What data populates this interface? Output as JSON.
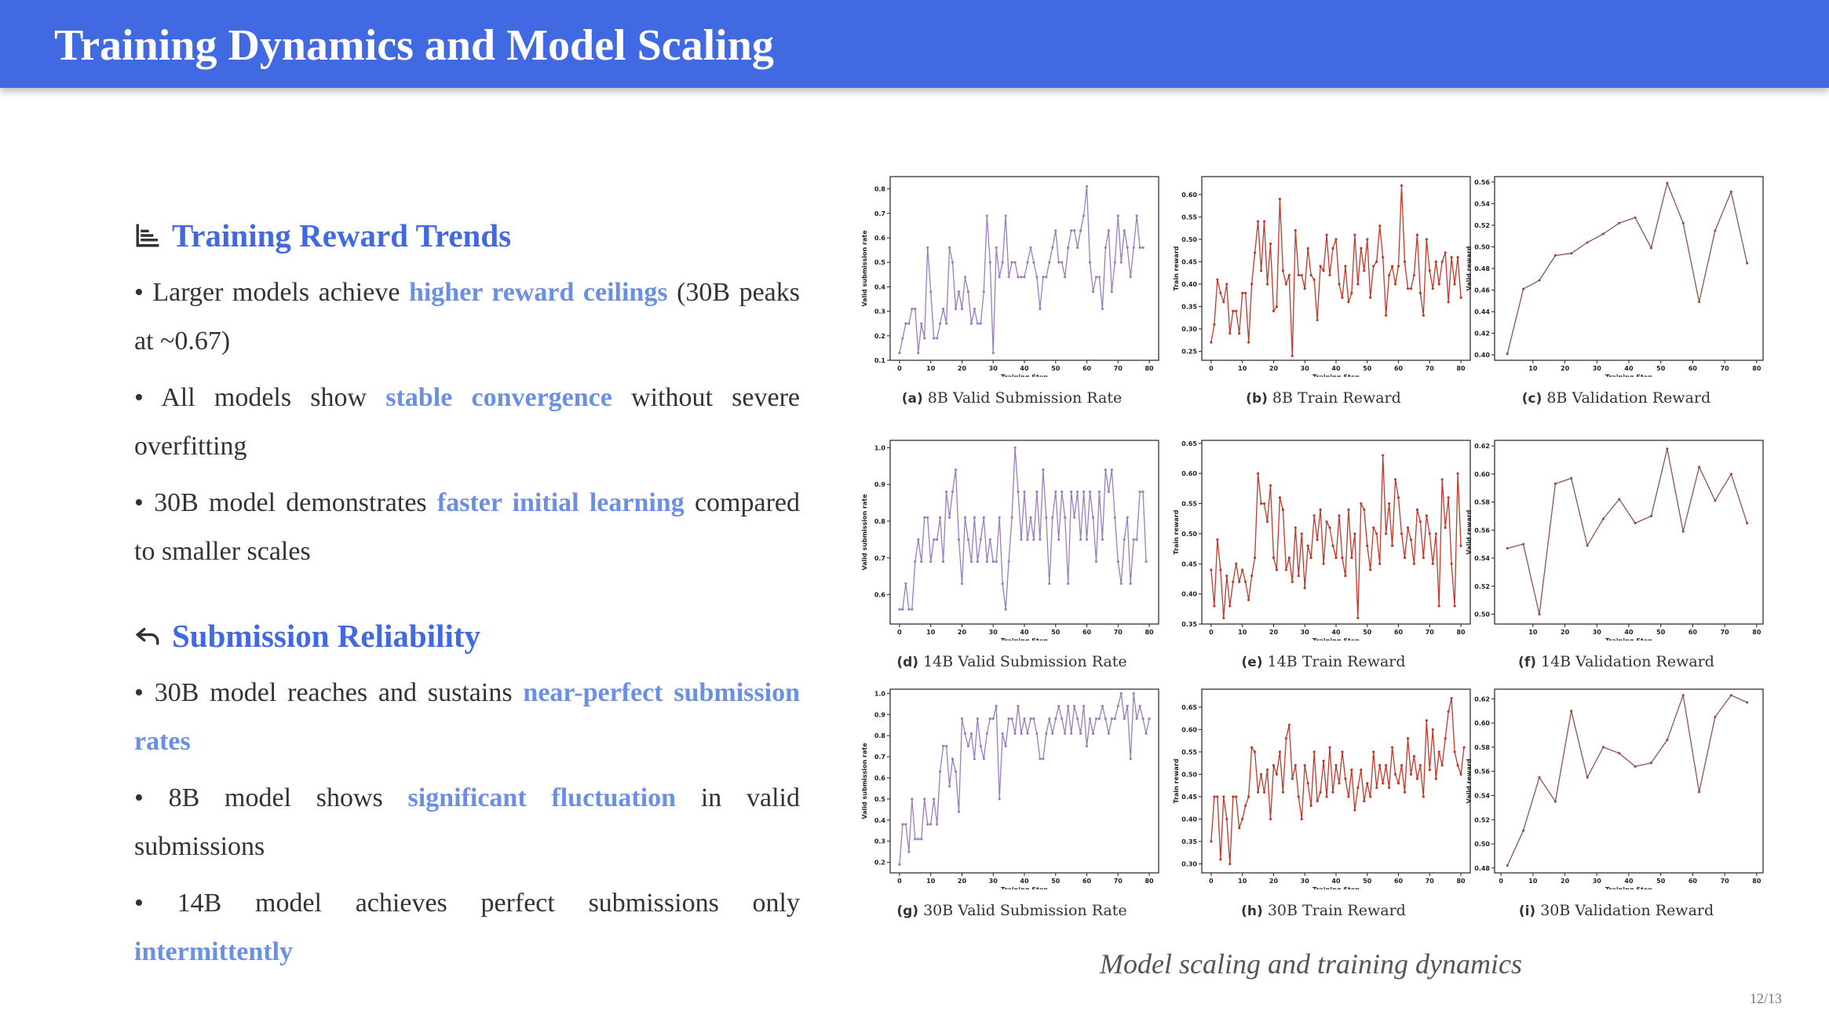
{
  "header": {
    "title": "Training Dynamics and Model Scaling"
  },
  "sections": [
    {
      "icon": "bar-chart-icon",
      "title": "Training Reward Trends",
      "bullets": [
        {
          "parts": [
            {
              "t": "• Larger models achieve "
            },
            {
              "t": "higher reward ceilings",
              "hl": true
            },
            {
              "t": " (30B peaks at ~0.67)"
            }
          ]
        },
        {
          "parts": [
            {
              "t": "• All models show "
            },
            {
              "t": "stable convergence",
              "hl": true
            },
            {
              "t": " without severe overfitting"
            }
          ]
        },
        {
          "parts": [
            {
              "t": "• 30B model demonstrates "
            },
            {
              "t": "faster initial learning",
              "hl": true
            },
            {
              "t": " compared to smaller scales"
            }
          ]
        }
      ]
    },
    {
      "icon": "reply-arrow-icon",
      "title": "Submission Reliability",
      "bullets": [
        {
          "parts": [
            {
              "t": "• 30B model reaches and sustains "
            },
            {
              "t": "near-perfect submission rates",
              "hl": true
            }
          ]
        },
        {
          "parts": [
            {
              "t": "• 8B model shows "
            },
            {
              "t": "significant fluctuation",
              "hl": true
            },
            {
              "t": " in valid submissions"
            }
          ]
        },
        {
          "parts": [
            {
              "t": "• 14B model achieves perfect submissions only "
            },
            {
              "t": "intermittently",
              "hl": true
            }
          ]
        }
      ]
    }
  ],
  "figure_caption": "Model scaling and training dynamics",
  "page_number": "12/13",
  "colors": {
    "header": "#4169e1",
    "highlight": "#6b8fe3",
    "purple_series": "#9b7ebd",
    "red_series": "#c0392b",
    "brown_series": "#8c564b"
  },
  "chart_data": [
    {
      "type": "line",
      "id": "a",
      "letter": "(a)",
      "title": "8B Valid Submission Rate",
      "xlabel": "Training Step",
      "ylabel": "Valid submission rate",
      "color": "#9b7ebd",
      "xlim": [
        -3,
        83
      ],
      "ylim": [
        0.1,
        0.85
      ],
      "xticks": [
        0,
        10,
        20,
        30,
        40,
        50,
        60,
        70,
        80
      ],
      "yticks": [
        0.1,
        0.2,
        0.3,
        0.4,
        0.5,
        0.6,
        0.7,
        0.8
      ],
      "x_start": 0,
      "x_step": 1,
      "values": [
        0.13,
        0.19,
        0.25,
        0.25,
        0.31,
        0.31,
        0.13,
        0.25,
        0.19,
        0.56,
        0.38,
        0.19,
        0.19,
        0.25,
        0.31,
        0.25,
        0.56,
        0.5,
        0.31,
        0.38,
        0.31,
        0.44,
        0.38,
        0.25,
        0.31,
        0.25,
        0.25,
        0.38,
        0.69,
        0.5,
        0.13,
        0.56,
        0.44,
        0.5,
        0.69,
        0.44,
        0.5,
        0.5,
        0.44,
        0.44,
        0.44,
        0.5,
        0.56,
        0.5,
        0.44,
        0.31,
        0.44,
        0.44,
        0.5,
        0.56,
        0.63,
        0.5,
        0.5,
        0.44,
        0.56,
        0.63,
        0.63,
        0.56,
        0.63,
        0.69,
        0.81,
        0.5,
        0.38,
        0.44,
        0.44,
        0.31,
        0.56,
        0.63,
        0.38,
        0.5,
        0.69,
        0.5,
        0.63,
        0.56,
        0.44,
        0.56,
        0.69,
        0.56,
        0.56
      ]
    },
    {
      "type": "line",
      "id": "b",
      "letter": "(b)",
      "title": "8B Train Reward",
      "xlabel": "Training Step",
      "ylabel": "Train reward",
      "color": "#c0392b",
      "xlim": [
        -3,
        83
      ],
      "ylim": [
        0.23,
        0.64
      ],
      "xticks": [
        0,
        10,
        20,
        30,
        40,
        50,
        60,
        70,
        80
      ],
      "yticks": [
        0.25,
        0.3,
        0.35,
        0.4,
        0.45,
        0.5,
        0.55,
        0.6
      ],
      "x_start": 0,
      "x_step": 1,
      "values": [
        0.27,
        0.31,
        0.41,
        0.38,
        0.36,
        0.4,
        0.29,
        0.34,
        0.34,
        0.29,
        0.38,
        0.38,
        0.27,
        0.4,
        0.47,
        0.54,
        0.43,
        0.54,
        0.4,
        0.49,
        0.34,
        0.35,
        0.59,
        0.43,
        0.4,
        0.42,
        0.24,
        0.52,
        0.42,
        0.42,
        0.39,
        0.48,
        0.42,
        0.41,
        0.32,
        0.44,
        0.43,
        0.51,
        0.42,
        0.48,
        0.5,
        0.4,
        0.37,
        0.44,
        0.36,
        0.38,
        0.51,
        0.4,
        0.48,
        0.43,
        0.5,
        0.37,
        0.44,
        0.45,
        0.53,
        0.46,
        0.33,
        0.42,
        0.44,
        0.4,
        0.44,
        0.62,
        0.45,
        0.39,
        0.39,
        0.42,
        0.51,
        0.38,
        0.33,
        0.5,
        0.43,
        0.39,
        0.45,
        0.4,
        0.45,
        0.47,
        0.36,
        0.46,
        0.4,
        0.46,
        0.37
      ]
    },
    {
      "type": "line",
      "id": "c",
      "letter": "(c)",
      "title": "8B Validation Reward",
      "xlabel": "Training Step",
      "ylabel": "Valid reward",
      "color": "#8c564b",
      "xlim": [
        -2,
        82
      ],
      "ylim": [
        0.395,
        0.565
      ],
      "xticks": [
        10,
        20,
        30,
        40,
        50,
        60,
        70,
        80
      ],
      "yticks": [
        0.4,
        0.42,
        0.44,
        0.46,
        0.48,
        0.5,
        0.52,
        0.54,
        0.56
      ],
      "x": [
        2,
        7,
        12,
        17,
        22,
        27,
        32,
        37,
        42,
        47,
        52,
        57,
        62,
        67,
        72,
        77
      ],
      "values": [
        0.401,
        0.461,
        0.469,
        0.492,
        0.494,
        0.504,
        0.512,
        0.522,
        0.527,
        0.499,
        0.559,
        0.522,
        0.449,
        0.515,
        0.551,
        0.485
      ]
    },
    {
      "type": "line",
      "id": "d",
      "letter": "(d)",
      "title": "14B Valid Submission Rate",
      "xlabel": "Training Step",
      "ylabel": "Valid submission rate",
      "color": "#9b7ebd",
      "xlim": [
        -3,
        83
      ],
      "ylim": [
        0.52,
        1.02
      ],
      "xticks": [
        0,
        10,
        20,
        30,
        40,
        50,
        60,
        70,
        80
      ],
      "yticks": [
        0.6,
        0.7,
        0.8,
        0.9,
        1.0
      ],
      "x_start": 0,
      "x_step": 1,
      "values": [
        0.56,
        0.56,
        0.63,
        0.56,
        0.56,
        0.69,
        0.75,
        0.69,
        0.81,
        0.81,
        0.69,
        0.75,
        0.75,
        0.81,
        0.69,
        0.88,
        0.81,
        0.88,
        0.94,
        0.75,
        0.63,
        0.81,
        0.75,
        0.69,
        0.81,
        0.69,
        0.75,
        0.81,
        0.69,
        0.75,
        0.69,
        0.69,
        0.81,
        0.63,
        0.56,
        0.69,
        0.81,
        1.0,
        0.88,
        0.75,
        0.88,
        0.75,
        0.81,
        0.75,
        0.88,
        0.75,
        0.94,
        0.81,
        0.63,
        0.81,
        0.88,
        0.75,
        0.88,
        0.81,
        0.63,
        0.88,
        0.81,
        0.88,
        0.75,
        0.88,
        0.75,
        0.88,
        0.81,
        0.69,
        0.88,
        0.75,
        0.94,
        0.88,
        0.94,
        0.81,
        0.69,
        0.63,
        0.75,
        0.81,
        0.63,
        0.75,
        0.75,
        0.88,
        0.88,
        0.69
      ]
    },
    {
      "type": "line",
      "id": "e",
      "letter": "(e)",
      "title": "14B Train Reward",
      "xlabel": "Training Step",
      "ylabel": "Train reward",
      "color": "#c0392b",
      "xlim": [
        -3,
        83
      ],
      "ylim": [
        0.35,
        0.655
      ],
      "xticks": [
        0,
        10,
        20,
        30,
        40,
        50,
        60,
        70,
        80
      ],
      "yticks": [
        0.35,
        0.4,
        0.45,
        0.5,
        0.55,
        0.6,
        0.65
      ],
      "x_start": 0,
      "x_step": 1,
      "values": [
        0.44,
        0.38,
        0.49,
        0.44,
        0.36,
        0.43,
        0.38,
        0.42,
        0.45,
        0.42,
        0.44,
        0.42,
        0.39,
        0.43,
        0.46,
        0.6,
        0.55,
        0.55,
        0.52,
        0.58,
        0.46,
        0.44,
        0.56,
        0.54,
        0.44,
        0.46,
        0.42,
        0.51,
        0.43,
        0.5,
        0.41,
        0.48,
        0.46,
        0.53,
        0.49,
        0.54,
        0.45,
        0.52,
        0.51,
        0.48,
        0.46,
        0.53,
        0.46,
        0.43,
        0.54,
        0.46,
        0.5,
        0.36,
        0.55,
        0.54,
        0.48,
        0.44,
        0.51,
        0.5,
        0.45,
        0.63,
        0.5,
        0.55,
        0.48,
        0.59,
        0.56,
        0.5,
        0.46,
        0.51,
        0.49,
        0.45,
        0.54,
        0.52,
        0.46,
        0.53,
        0.5,
        0.45,
        0.5,
        0.38,
        0.59,
        0.51,
        0.56,
        0.45,
        0.38,
        0.6,
        0.48
      ]
    },
    {
      "type": "line",
      "id": "f",
      "letter": "(f)",
      "title": "14B Validation Reward",
      "xlabel": "Training Step",
      "ylabel": "Valid reward",
      "color": "#8c564b",
      "xlim": [
        -2,
        82
      ],
      "ylim": [
        0.493,
        0.624
      ],
      "xticks": [
        10,
        20,
        30,
        40,
        50,
        60,
        70,
        80
      ],
      "yticks": [
        0.5,
        0.52,
        0.54,
        0.56,
        0.58,
        0.6,
        0.62
      ],
      "x": [
        2,
        7,
        12,
        17,
        22,
        27,
        32,
        37,
        42,
        47,
        52,
        57,
        62,
        67,
        72,
        77
      ],
      "values": [
        0.547,
        0.55,
        0.5,
        0.593,
        0.597,
        0.549,
        0.568,
        0.582,
        0.565,
        0.57,
        0.618,
        0.559,
        0.605,
        0.581,
        0.6,
        0.565
      ]
    },
    {
      "type": "line",
      "id": "g",
      "letter": "(g)",
      "title": "30B Valid Submission Rate",
      "xlabel": "Training Step",
      "ylabel": "Valid submission rate",
      "color": "#9b7ebd",
      "xlim": [
        -3,
        83
      ],
      "ylim": [
        0.15,
        1.02
      ],
      "xticks": [
        0,
        10,
        20,
        30,
        40,
        50,
        60,
        70,
        80
      ],
      "yticks": [
        0.2,
        0.3,
        0.4,
        0.5,
        0.6,
        0.7,
        0.8,
        0.9,
        1.0
      ],
      "x_start": 0,
      "x_step": 1,
      "values": [
        0.19,
        0.38,
        0.38,
        0.25,
        0.5,
        0.31,
        0.31,
        0.31,
        0.5,
        0.38,
        0.38,
        0.5,
        0.38,
        0.63,
        0.75,
        0.75,
        0.56,
        0.69,
        0.63,
        0.44,
        0.88,
        0.81,
        0.75,
        0.81,
        0.69,
        0.88,
        0.75,
        0.69,
        0.81,
        0.88,
        0.88,
        0.94,
        0.5,
        0.81,
        0.75,
        0.88,
        0.88,
        0.81,
        0.94,
        0.81,
        0.88,
        0.81,
        0.88,
        0.88,
        0.81,
        0.69,
        0.69,
        0.81,
        0.88,
        0.81,
        0.88,
        0.94,
        0.88,
        0.81,
        0.94,
        0.81,
        0.94,
        0.88,
        0.81,
        0.94,
        0.75,
        0.88,
        0.81,
        0.88,
        0.88,
        0.94,
        0.88,
        0.81,
        0.88,
        0.88,
        0.94,
        1.0,
        0.88,
        0.94,
        0.69,
        1.0,
        0.88,
        0.94,
        0.88,
        0.81,
        0.88
      ]
    },
    {
      "type": "line",
      "id": "h",
      "letter": "(h)",
      "title": "30B Train Reward",
      "xlabel": "Training Step",
      "ylabel": "Train reward",
      "color": "#c0392b",
      "xlim": [
        -3,
        83
      ],
      "ylim": [
        0.28,
        0.69
      ],
      "xticks": [
        0,
        10,
        20,
        30,
        40,
        50,
        60,
        70,
        80
      ],
      "yticks": [
        0.3,
        0.35,
        0.4,
        0.45,
        0.5,
        0.55,
        0.6,
        0.65
      ],
      "x_start": 0,
      "x_step": 1,
      "values": [
        0.35,
        0.45,
        0.45,
        0.31,
        0.45,
        0.4,
        0.3,
        0.45,
        0.45,
        0.38,
        0.4,
        0.43,
        0.45,
        0.56,
        0.55,
        0.46,
        0.5,
        0.46,
        0.51,
        0.4,
        0.52,
        0.5,
        0.55,
        0.46,
        0.58,
        0.61,
        0.49,
        0.52,
        0.45,
        0.4,
        0.52,
        0.48,
        0.43,
        0.55,
        0.44,
        0.46,
        0.53,
        0.45,
        0.56,
        0.46,
        0.52,
        0.48,
        0.55,
        0.49,
        0.45,
        0.51,
        0.42,
        0.47,
        0.51,
        0.44,
        0.48,
        0.45,
        0.55,
        0.47,
        0.52,
        0.48,
        0.52,
        0.47,
        0.56,
        0.5,
        0.48,
        0.52,
        0.46,
        0.58,
        0.5,
        0.54,
        0.49,
        0.52,
        0.45,
        0.62,
        0.51,
        0.6,
        0.49,
        0.55,
        0.52,
        0.58,
        0.64,
        0.67,
        0.55,
        0.52,
        0.5,
        0.56
      ]
    },
    {
      "type": "line",
      "id": "i",
      "letter": "(i)",
      "title": "30B Validation Reward",
      "xlabel": "Training Step",
      "ylabel": "Valid reward",
      "color": "#8c564b",
      "xlim": [
        -2,
        82
      ],
      "ylim": [
        0.476,
        0.628
      ],
      "xticks": [
        0,
        10,
        20,
        30,
        40,
        50,
        60,
        70,
        80
      ],
      "yticks": [
        0.48,
        0.5,
        0.52,
        0.54,
        0.56,
        0.58,
        0.6,
        0.62
      ],
      "x": [
        2,
        7,
        12,
        17,
        22,
        27,
        32,
        37,
        42,
        47,
        52,
        57,
        62,
        67,
        72,
        77
      ],
      "values": [
        0.482,
        0.511,
        0.555,
        0.535,
        0.61,
        0.555,
        0.58,
        0.575,
        0.564,
        0.567,
        0.586,
        0.623,
        0.543,
        0.605,
        0.623,
        0.617
      ]
    }
  ]
}
